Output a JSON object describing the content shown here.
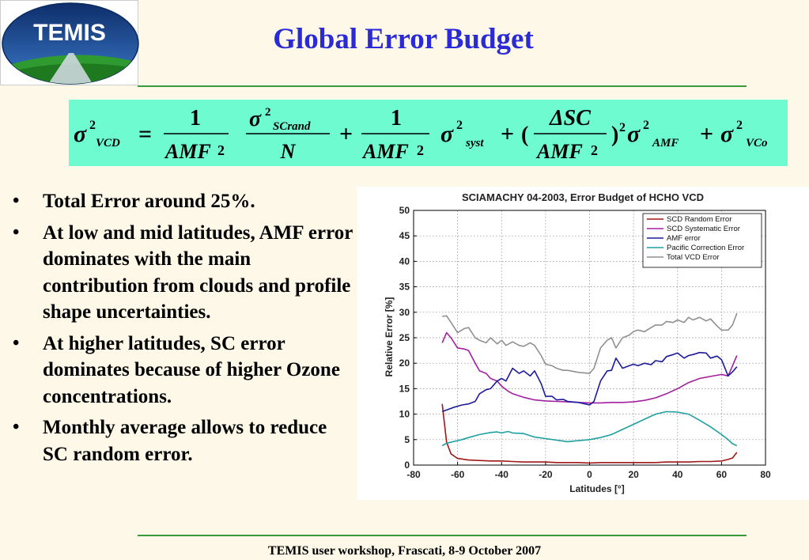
{
  "slide": {
    "title": "Global Error Budget",
    "footer": "TEMIS user workshop, Frascati, 8-9 October 2007",
    "logo_text": "TEMIS",
    "accent_color": "#2b2bd6",
    "formula_bg": "#6dfbcf"
  },
  "formula": {
    "lhs_sigma": "σ",
    "lhs_exp": "2",
    "lhs_sub": "VCD",
    "equals": "=",
    "one": "1",
    "amf": "AMF",
    "sq": "2",
    "sigma": "σ",
    "scrand": "SCrand",
    "n": "N",
    "plus": "+",
    "syst": "syst",
    "paren_open": "(",
    "paren_close": ")",
    "delta_sc": "ΔSC",
    "amf_sub": "AMF",
    "vco_sub": "VCo"
  },
  "bullets": [
    "Total Error around 25%.",
    "At low and mid latitudes, AMF error dominates with the main contribution from clouds and profile shape uncertainties.",
    "At higher latitudes, SC error dominates because of higher Ozone concentrations.",
    "Monthly average allows to reduce SC random error."
  ],
  "chart_data": {
    "type": "line",
    "title": "SCIAMACHY 04-2003, Error Budget of HCHO VCD",
    "xlabel": "Latitudes [°]",
    "ylabel": "Relative Error [%]",
    "xlim": [
      -80,
      80
    ],
    "ylim": [
      0,
      50
    ],
    "xticks": [
      -80,
      -60,
      -40,
      -20,
      0,
      20,
      40,
      60,
      80
    ],
    "yticks": [
      0,
      5,
      10,
      15,
      20,
      25,
      30,
      35,
      40,
      45,
      50
    ],
    "grid": true,
    "legend_position": "top-right",
    "series": [
      {
        "name": "SCD Random Error",
        "color": "#a01818",
        "x": [
          -67,
          -65,
          -63,
          -60,
          -55,
          -50,
          -45,
          -40,
          -35,
          -30,
          -25,
          -20,
          -15,
          -10,
          -5,
          0,
          5,
          10,
          15,
          20,
          25,
          30,
          35,
          40,
          45,
          50,
          55,
          60,
          63,
          65,
          67
        ],
        "y": [
          12,
          4.5,
          2.2,
          1.3,
          1.0,
          0.9,
          0.8,
          0.8,
          0.7,
          0.6,
          0.6,
          0.6,
          0.5,
          0.5,
          0.5,
          0.4,
          0.5,
          0.5,
          0.5,
          0.5,
          0.5,
          0.5,
          0.6,
          0.6,
          0.6,
          0.7,
          0.7,
          0.8,
          1.1,
          1.4,
          2.5
        ]
      },
      {
        "name": "SCD Systematic Error",
        "color": "#a020a0",
        "x": [
          -67,
          -65,
          -63,
          -60,
          -57,
          -55,
          -52,
          -50,
          -47,
          -45,
          -42,
          -40,
          -37,
          -35,
          -30,
          -25,
          -20,
          -15,
          -10,
          -5,
          0,
          5,
          10,
          15,
          20,
          25,
          30,
          35,
          40,
          45,
          50,
          55,
          60,
          63,
          65,
          67
        ],
        "y": [
          24,
          26,
          25,
          23,
          22.8,
          22.5,
          20,
          18.5,
          18,
          17,
          16.5,
          15.5,
          14.5,
          14,
          13.3,
          12.8,
          12.6,
          12.5,
          12.4,
          12.3,
          12.2,
          12.2,
          12.3,
          12.3,
          12.4,
          12.7,
          13.2,
          14,
          15,
          16.2,
          17,
          17.4,
          17.8,
          17.5,
          19.5,
          21.5
        ]
      },
      {
        "name": "AMF error",
        "color": "#1c1c9c",
        "x": [
          -67,
          -65,
          -62,
          -58,
          -55,
          -52,
          -50,
          -47,
          -45,
          -42,
          -40,
          -38,
          -35,
          -32,
          -30,
          -27,
          -25,
          -22,
          -20,
          -17,
          -15,
          -12,
          -10,
          -5,
          0,
          2,
          5,
          8,
          10,
          12,
          15,
          18,
          20,
          22,
          25,
          28,
          30,
          33,
          35,
          38,
          40,
          43,
          45,
          47,
          50,
          53,
          55,
          58,
          60,
          63,
          65,
          67
        ],
        "y": [
          10.5,
          10.8,
          11.3,
          11.8,
          12,
          12.5,
          14,
          14.8,
          15,
          16.5,
          17,
          16.5,
          19,
          18,
          18.5,
          17.5,
          18.5,
          16,
          13.5,
          13.5,
          12.8,
          12.9,
          12.5,
          12.3,
          11.8,
          12.5,
          16.5,
          18.5,
          18.6,
          21,
          19,
          19.5,
          19.8,
          19.5,
          20,
          19.7,
          20.5,
          20.3,
          21.3,
          21.7,
          22,
          21,
          21.5,
          21.7,
          22.1,
          22,
          21,
          21.4,
          20.7,
          17.5,
          18.3,
          19.3
        ]
      },
      {
        "name": "Pacific Correction Error",
        "color": "#20a0a0",
        "x": [
          -67,
          -65,
          -62,
          -58,
          -55,
          -50,
          -45,
          -42,
          -40,
          -37,
          -35,
          -30,
          -25,
          -20,
          -15,
          -10,
          -5,
          0,
          5,
          10,
          15,
          20,
          25,
          30,
          35,
          40,
          45,
          50,
          55,
          60,
          63,
          65,
          67
        ],
        "y": [
          3.8,
          4.3,
          4.6,
          5,
          5.4,
          6.0,
          6.4,
          6.5,
          6.3,
          6.6,
          6.3,
          6.2,
          5.5,
          5.2,
          4.9,
          4.6,
          4.8,
          5.0,
          5.4,
          6.0,
          7.0,
          8.0,
          9.0,
          10.0,
          10.5,
          10.4,
          10.0,
          8.8,
          7.5,
          6.0,
          5.0,
          4.2,
          3.8
        ]
      },
      {
        "name": "Total VCD Error",
        "color": "#909090",
        "x": [
          -67,
          -65,
          -63,
          -60,
          -57,
          -55,
          -52,
          -50,
          -47,
          -45,
          -42,
          -40,
          -38,
          -35,
          -32,
          -30,
          -27,
          -25,
          -22,
          -20,
          -17,
          -15,
          -12,
          -10,
          -5,
          0,
          2,
          5,
          8,
          10,
          12,
          15,
          18,
          20,
          22,
          25,
          28,
          30,
          33,
          35,
          38,
          40,
          43,
          45,
          47,
          50,
          53,
          55,
          58,
          60,
          63,
          65,
          67
        ],
        "y": [
          29.2,
          29.3,
          28,
          26,
          26.8,
          27,
          25,
          24.5,
          24,
          25,
          23.8,
          24.5,
          23.5,
          24.2,
          23.5,
          23.3,
          24,
          23.5,
          21.5,
          19.8,
          19.5,
          19,
          18.6,
          18.6,
          18.2,
          18,
          19,
          23,
          24.5,
          25,
          23,
          25,
          25.5,
          26.2,
          26.5,
          26.2,
          27,
          27.5,
          27.5,
          28.2,
          28,
          28.5,
          28,
          29,
          28.5,
          29,
          28.3,
          28.7,
          27.3,
          26.5,
          26.5,
          27.5,
          29.8
        ]
      }
    ]
  }
}
